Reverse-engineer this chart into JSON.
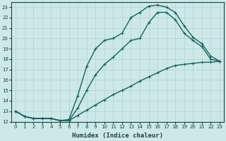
{
  "xlabel": "Humidex (Indice chaleur)",
  "bg_color": "#cce8e8",
  "grid_color": "#b0d4d4",
  "line_color": "#1a6060",
  "xlim": [
    -0.5,
    23.5
  ],
  "ylim": [
    12,
    23.5
  ],
  "xticks": [
    0,
    1,
    2,
    3,
    4,
    5,
    6,
    7,
    8,
    9,
    10,
    11,
    12,
    13,
    14,
    15,
    16,
    17,
    18,
    19,
    20,
    21,
    22,
    23
  ],
  "yticks": [
    12,
    13,
    14,
    15,
    16,
    17,
    18,
    19,
    20,
    21,
    22,
    23
  ],
  "curve1_x": [
    0,
    1,
    2,
    3,
    4,
    5,
    6,
    7,
    8,
    9,
    10,
    11,
    12,
    13,
    14,
    15,
    16,
    17,
    18,
    19,
    20,
    21,
    22,
    23
  ],
  "curve1_y": [
    13.0,
    12.5,
    12.3,
    12.3,
    12.3,
    12.1,
    12.1,
    12.6,
    13.1,
    13.6,
    14.1,
    14.6,
    15.0,
    15.4,
    15.9,
    16.3,
    16.7,
    17.1,
    17.4,
    17.5,
    17.6,
    17.7,
    17.7,
    17.8
  ],
  "curve2_x": [
    0,
    1,
    2,
    3,
    4,
    5,
    6,
    7,
    8,
    9,
    10,
    11,
    12,
    13,
    14,
    15,
    16,
    17,
    18,
    19,
    20,
    21,
    22,
    23
  ],
  "curve2_y": [
    13.0,
    12.5,
    12.3,
    12.3,
    12.3,
    12.1,
    12.1,
    13.3,
    15.0,
    16.5,
    17.5,
    18.2,
    19.0,
    19.8,
    20.0,
    21.5,
    22.5,
    22.5,
    21.8,
    20.5,
    19.8,
    19.2,
    18.0,
    17.8
  ],
  "curve3_x": [
    0,
    1,
    2,
    3,
    4,
    5,
    6,
    7,
    8,
    9,
    10,
    11,
    12,
    13,
    14,
    15,
    16,
    17,
    18,
    19,
    20,
    21,
    22,
    23
  ],
  "curve3_y": [
    13.0,
    12.5,
    12.3,
    12.3,
    12.3,
    12.1,
    12.2,
    14.5,
    17.3,
    19.0,
    19.8,
    20.0,
    20.5,
    22.0,
    22.5,
    23.1,
    23.2,
    23.0,
    22.5,
    21.2,
    20.1,
    19.5,
    18.3,
    17.8
  ],
  "marker": "+",
  "markersize": 3,
  "linewidth": 1.0
}
